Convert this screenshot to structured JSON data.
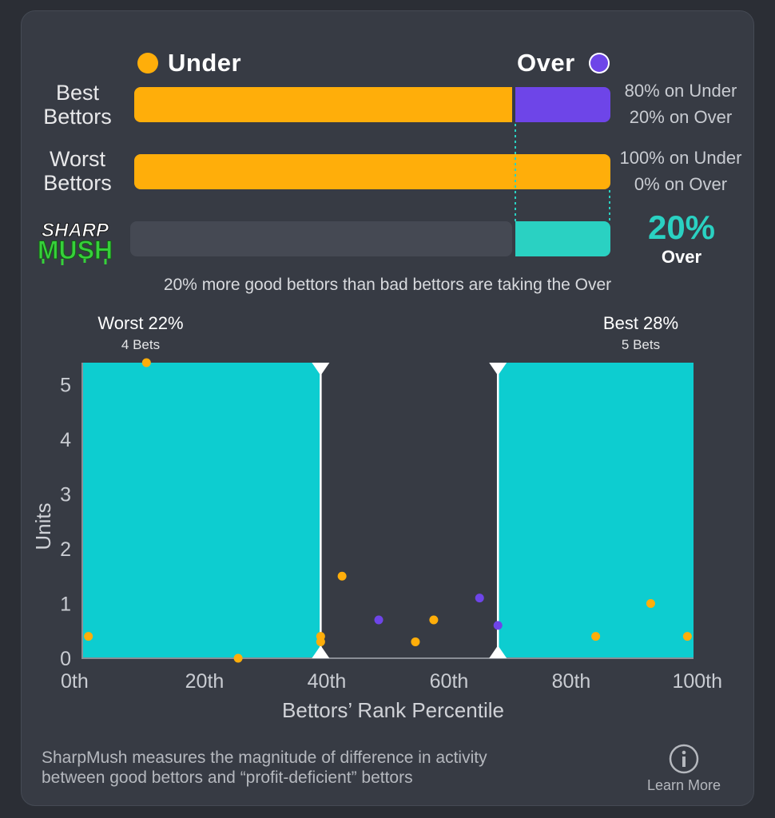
{
  "legend": {
    "under_label": "Under",
    "over_label": "Over",
    "under_color": "#ffae0a",
    "over_color": "#6e45e8"
  },
  "rows": [
    {
      "label_line1": "Best",
      "label_line2": "Bettors",
      "under_pct": 80,
      "over_pct": 20,
      "under_text": "80% on Under",
      "over_text": "20% on Over"
    },
    {
      "label_line1": "Worst",
      "label_line2": "Bettors",
      "under_pct": 100,
      "over_pct": 0,
      "under_text": "100% on Under",
      "over_text": "0% on Over"
    }
  ],
  "sharp_mush": {
    "logo_line1": "SHARP",
    "logo_line2": "MUSH",
    "value_pct": 20,
    "value_text": "20%",
    "side_text": "Over",
    "bar_color": "#2ad1c2"
  },
  "summary": "20% more good bettors than bad bettors are taking the Over",
  "groups": {
    "worst": {
      "title": "Worst 22%",
      "sub": "4 Bets"
    },
    "best": {
      "title": "Best 28%",
      "sub": "5 Bets"
    }
  },
  "chart_data": {
    "type": "scatter",
    "xlabel": "Bettors’ Rank Percentile",
    "ylabel": "Units",
    "xlim": [
      0,
      100
    ],
    "ylim": [
      0,
      5.4
    ],
    "x_ticks": [
      "0th",
      "20th",
      "40th",
      "60th",
      "80th",
      "100th"
    ],
    "x_tick_values": [
      0,
      20,
      40,
      60,
      80,
      100
    ],
    "y_ticks": [
      0,
      1,
      2,
      3,
      4,
      5
    ],
    "shaded_ranges": [
      [
        0,
        39
      ],
      [
        68,
        100
      ]
    ],
    "markers_at": [
      39,
      68
    ],
    "shade_color": "#0dcdd0",
    "points": [
      {
        "x": 1,
        "y": 0.4,
        "side": "Under"
      },
      {
        "x": 10.5,
        "y": 5.4,
        "side": "Under"
      },
      {
        "x": 25.5,
        "y": 0.0,
        "side": "Under"
      },
      {
        "x": 39,
        "y": 0.4,
        "side": "Under"
      },
      {
        "x": 39,
        "y": 0.3,
        "side": "Under"
      },
      {
        "x": 42.5,
        "y": 1.5,
        "side": "Under"
      },
      {
        "x": 48.5,
        "y": 0.7,
        "side": "Over"
      },
      {
        "x": 54.5,
        "y": 0.3,
        "side": "Under"
      },
      {
        "x": 57.5,
        "y": 0.7,
        "side": "Under"
      },
      {
        "x": 65,
        "y": 1.1,
        "side": "Over"
      },
      {
        "x": 68,
        "y": 0.6,
        "side": "Over"
      },
      {
        "x": 84,
        "y": 0.4,
        "side": "Under"
      },
      {
        "x": 93,
        "y": 1.0,
        "side": "Under"
      },
      {
        "x": 99,
        "y": 0.4,
        "side": "Under"
      }
    ]
  },
  "footer": {
    "line1": "SharpMush measures the magnitude of difference in activity",
    "line2": "between good bettors and “profit-deficient” bettors",
    "learn_more": "Learn More"
  }
}
